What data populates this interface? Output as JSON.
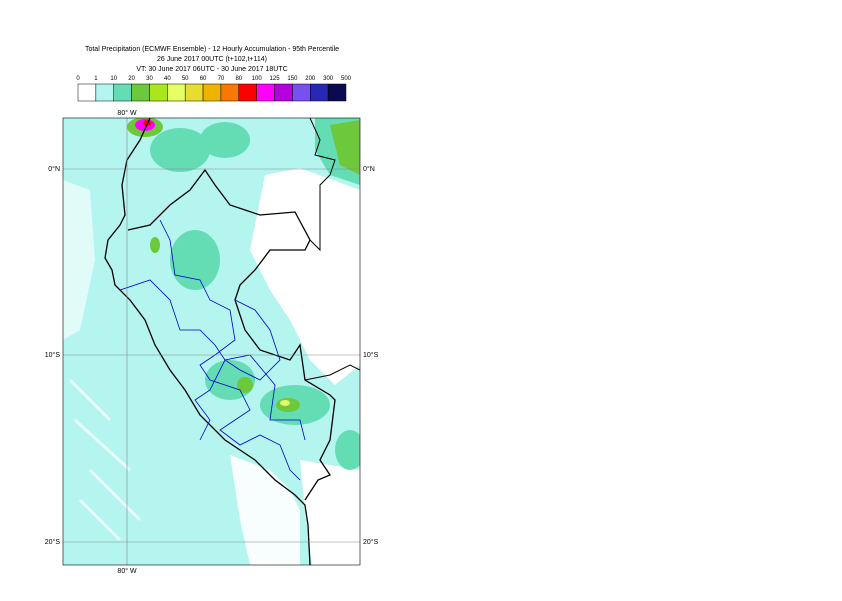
{
  "header": {
    "title_lines": [
      "Total Precipitation (ECMWF Ensemble) - 12 Hourly Accumulation - 95th Percentile",
      "26 June 2017 00UTC (t+102,t+114)",
      "VT: 30 June 2017 06UTC - 30 June 2017 18UTC"
    ]
  },
  "legend": {
    "labels": [
      "0",
      "1",
      "10",
      "20",
      "30",
      "40",
      "50",
      "60",
      "70",
      "80",
      "100",
      "125",
      "150",
      "200",
      "300",
      "500"
    ],
    "colors": [
      "#ffffff",
      "#b4f5f0",
      "#64dcb4",
      "#6ec83c",
      "#aae61e",
      "#e6ff64",
      "#e6dc32",
      "#f0b400",
      "#fa7800",
      "#ff0000",
      "#ff00ff",
      "#b400dc",
      "#7850f0",
      "#2828b4",
      "#0a0a50"
    ]
  },
  "map": {
    "lon_label_top": "80° W",
    "lon_label_bottom": "80° W",
    "lat_labels_left": [
      "0°N",
      "10°S",
      "20°S"
    ],
    "lat_labels_right": [
      "0°N",
      "10°S",
      "20°S"
    ]
  }
}
